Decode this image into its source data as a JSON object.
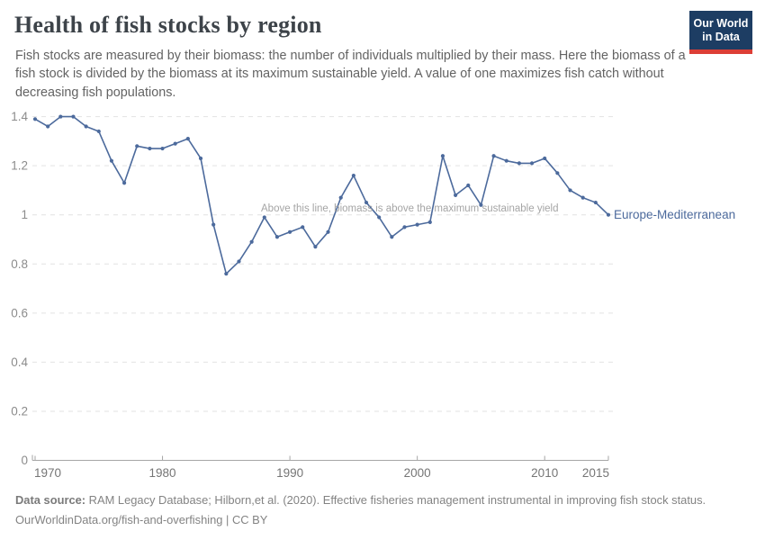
{
  "header": {
    "title": "Health of fish stocks by region",
    "subtitle": "Fish stocks are measured by their biomass: the number of individuals multiplied by their mass. Here the biomass of a fish stock is divided by the biomass at its maximum sustainable yield. A value of one maximizes fish catch without decreasing fish populations.",
    "logo": {
      "line1": "Our World",
      "line2": "in Data",
      "bg_color": "#1d3d63",
      "accent_color": "#dc3e36"
    }
  },
  "chart_data": {
    "type": "line",
    "title": "Health of fish stocks by region",
    "xlabel": "",
    "ylabel": "",
    "xlim": [
      1970,
      2015
    ],
    "ylim": [
      0,
      1.4
    ],
    "grid": "horizontal dashed",
    "legend_position": "right of last point",
    "x_ticks": [
      1970,
      1980,
      1990,
      2000,
      2010,
      2015
    ],
    "y_ticks": [
      0,
      0.2,
      0.4,
      0.6,
      0.8,
      1,
      1.2,
      1.4
    ],
    "annotation": "Above this line, biomass is above the maximum sustainable yield",
    "x": [
      1970,
      1971,
      1972,
      1973,
      1974,
      1975,
      1976,
      1977,
      1978,
      1979,
      1980,
      1981,
      1982,
      1983,
      1984,
      1985,
      1986,
      1987,
      1988,
      1989,
      1990,
      1991,
      1992,
      1993,
      1994,
      1995,
      1996,
      1997,
      1998,
      1999,
      2000,
      2001,
      2002,
      2003,
      2004,
      2005,
      2006,
      2007,
      2008,
      2009,
      2010,
      2011,
      2012,
      2013,
      2014,
      2015
    ],
    "series": [
      {
        "name": "Europe-Mediterranean",
        "color": "#4c6a9c",
        "values": [
          1.39,
          1.36,
          1.4,
          1.4,
          1.36,
          1.34,
          1.22,
          1.13,
          1.28,
          1.27,
          1.27,
          1.29,
          1.31,
          1.23,
          0.96,
          0.76,
          0.81,
          0.89,
          0.99,
          0.91,
          0.93,
          0.95,
          0.87,
          0.93,
          1.07,
          1.16,
          1.05,
          0.99,
          0.91,
          0.95,
          0.96,
          0.97,
          1.24,
          1.08,
          1.12,
          1.04,
          1.24,
          1.22,
          1.21,
          1.21,
          1.23,
          1.17,
          1.1,
          1.07,
          1.05,
          1.0
        ]
      }
    ]
  },
  "footer": {
    "source_label": "Data source:",
    "source_text": " RAM Legacy Database; Hilborn,et al. (2020). Effective fisheries management instrumental in improving fish stock status.",
    "license_line": "OurWorldinData.org/fish-and-overfishing | CC BY"
  }
}
